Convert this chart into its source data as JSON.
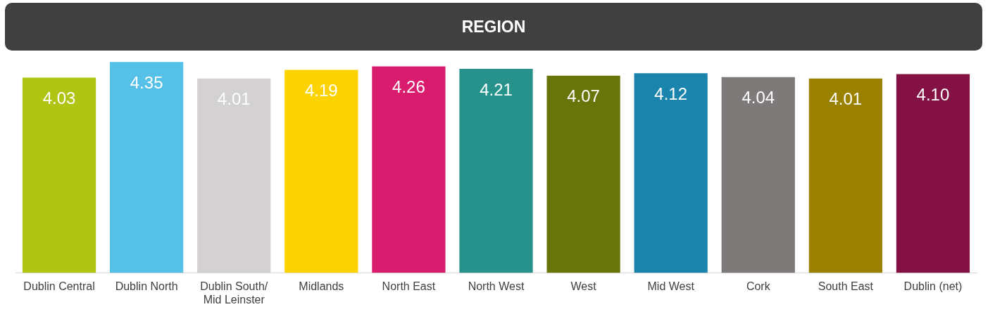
{
  "chart_data": {
    "type": "bar",
    "title": "REGION",
    "categories": [
      "Dublin Central",
      "Dublin North",
      "Dublin South/Mid Leinster",
      "Midlands",
      "North East",
      "North West",
      "West",
      "Mid West",
      "Cork",
      "South East",
      "Dublin (net)"
    ],
    "values": [
      4.03,
      4.35,
      4.01,
      4.19,
      4.26,
      4.21,
      4.07,
      4.12,
      4.04,
      4.01,
      4.1
    ],
    "value_labels": [
      "4.03",
      "4.35",
      "4.01",
      "4.19",
      "4.26",
      "4.21",
      "4.07",
      "4.12",
      "4.04",
      "4.01",
      "4.10"
    ],
    "colors": [
      "#b0c414",
      "#55c0e8",
      "#d3d1d2",
      "#fcd200",
      "#d91c6e",
      "#27918c",
      "#67750a",
      "#1b84ad",
      "#7e7a79",
      "#9a8100",
      "#841143"
    ],
    "grid": false,
    "legend": false
  }
}
